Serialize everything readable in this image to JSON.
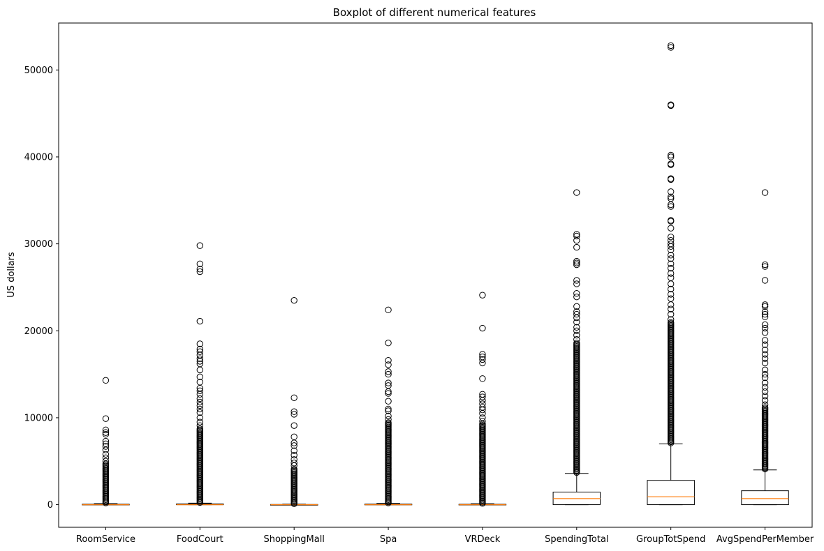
{
  "chart_data": {
    "type": "boxplot",
    "title": "Boxplot of different numerical features",
    "xlabel": "",
    "ylabel": "US dollars",
    "ylim": [
      -2600,
      55400
    ],
    "yticks": [
      0,
      10000,
      20000,
      30000,
      40000,
      50000
    ],
    "ytick_labels": [
      "0",
      "10000",
      "20000",
      "30000",
      "40000",
      "50000"
    ],
    "grid": false,
    "box_color": "#000000",
    "median_color": "#ff7f0e",
    "categories": [
      "RoomService",
      "FoodCourt",
      "ShoppingMall",
      "Spa",
      "VRDeck",
      "SpendingTotal",
      "GroupTotSpend",
      "AvgSpendPerMember"
    ],
    "boxes": [
      {
        "name": "RoomService",
        "min": 0,
        "q1": 0,
        "median": 0,
        "q3": 50,
        "max": 120,
        "outliers_top": [
          14300,
          9900,
          8600,
          8300,
          8100,
          7300,
          7000,
          6700,
          6300,
          5800,
          5400,
          5000
        ],
        "outlier_dense_range": [
          200,
          4800
        ]
      },
      {
        "name": "FoodCourt",
        "min": 0,
        "q1": 0,
        "median": 0,
        "q3": 80,
        "max": 180,
        "outliers_top": [
          29800,
          27700,
          27100,
          26800,
          21100,
          18500,
          17900,
          17600,
          17200,
          16800,
          16500,
          16200,
          15500,
          14700,
          14100,
          13400,
          13100,
          12700,
          12200,
          11800,
          11400,
          11000,
          10600,
          10000,
          9500,
          9100
        ],
        "outlier_dense_range": [
          250,
          8800
        ]
      },
      {
        "name": "ShoppingMall",
        "min": 0,
        "q1": 0,
        "median": 0,
        "q3": 25,
        "max": 60,
        "outliers_top": [
          23500,
          12300,
          10700,
          10400,
          9100,
          7800,
          7100,
          6800,
          6200,
          5700,
          5200,
          4800,
          4500
        ],
        "outlier_dense_range": [
          100,
          4200
        ]
      },
      {
        "name": "Spa",
        "min": 0,
        "q1": 0,
        "median": 0,
        "q3": 60,
        "max": 150,
        "outliers_top": [
          22400,
          18600,
          16600,
          16100,
          15300,
          15000,
          14000,
          13700,
          13000,
          12800,
          11900,
          11000,
          10800,
          10200,
          9800
        ],
        "outlier_dense_range": [
          200,
          9500
        ]
      },
      {
        "name": "VRDeck",
        "min": 0,
        "q1": 0,
        "median": 0,
        "q3": 45,
        "max": 110,
        "outliers_top": [
          24100,
          20300,
          17300,
          17000,
          16700,
          16300,
          14500,
          12700,
          12400,
          12000,
          11600,
          11200,
          10900,
          10500,
          10000,
          9600
        ],
        "outlier_dense_range": [
          150,
          9300
        ]
      },
      {
        "name": "SpendingTotal",
        "min": 0,
        "q1": 0,
        "median": 700,
        "q3": 1450,
        "max": 3600,
        "outliers_top": [
          35900,
          31100,
          30900,
          30400,
          29600,
          28000,
          27800,
          27600,
          25800,
          25400,
          24300,
          23900,
          22800,
          22200,
          21900,
          21500,
          21000,
          20400,
          20000,
          19500,
          19000
        ],
        "outlier_dense_range": [
          3700,
          18700
        ]
      },
      {
        "name": "GroupTotSpend",
        "min": 0,
        "q1": 0,
        "median": 900,
        "q3": 2800,
        "max": 7000,
        "outliers_top": [
          52800,
          52600,
          46000,
          45900,
          40200,
          40000,
          39200,
          39100,
          37500,
          37400,
          36000,
          35400,
          35200,
          34500,
          34300,
          32700,
          32600,
          31800,
          30800,
          30400,
          30000,
          29700,
          29300,
          28700,
          28300,
          27700,
          27200,
          26600,
          26100,
          25400,
          24800,
          24200,
          23700,
          23000,
          22500,
          21900,
          21300
        ],
        "outlier_dense_range": [
          7100,
          21000
        ]
      },
      {
        "name": "AvgSpendPerMember",
        "min": 0,
        "q1": 0,
        "median": 700,
        "q3": 1600,
        "max": 4000,
        "outliers_top": [
          35900,
          27600,
          27400,
          25800,
          23000,
          22800,
          22200,
          21900,
          21600,
          20700,
          20300,
          19800,
          18900,
          18400,
          17800,
          17300,
          16800,
          16300,
          15500,
          15000,
          14600,
          14000,
          13500,
          13000,
          12500,
          12000,
          11500
        ],
        "outlier_dense_range": [
          4100,
          11200
        ]
      }
    ]
  }
}
